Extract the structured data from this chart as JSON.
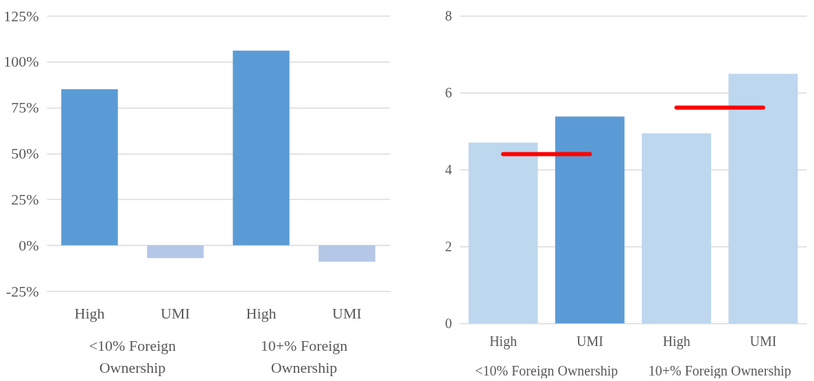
{
  "chart_data": [
    {
      "type": "bar",
      "categories": [
        "High",
        "UMI",
        "High",
        "UMI"
      ],
      "series": [
        {
          "type": "bar",
          "colors": [
            "#5b9bd5",
            "#b4c7e7",
            "#5b9bd5",
            "#b4c7e7"
          ],
          "values": [
            85,
            -7,
            106,
            -9
          ]
        }
      ],
      "ylim": [
        -25,
        125
      ],
      "yticks": [
        {
          "value": -25,
          "label": "-25%"
        },
        {
          "value": 0,
          "label": "0%"
        },
        {
          "value": 25,
          "label": "25%"
        },
        {
          "value": 50,
          "label": "50%"
        },
        {
          "value": 75,
          "label": "75%"
        },
        {
          "value": 100,
          "label": "100%"
        },
        {
          "value": 125,
          "label": "125%"
        }
      ],
      "grid": "y",
      "annotations": [
        "<10% Foreign Ownership",
        "10+% Foreign Ownership"
      ]
    },
    {
      "type": "bar",
      "categories": [
        "High",
        "UMI",
        "High",
        "UMI"
      ],
      "series": [
        {
          "type": "bar",
          "colors": [
            "#bdd7ee",
            "#5b9bd5",
            "#bdd7ee",
            "#bdd7ee"
          ],
          "values": [
            4.7,
            5.38,
            4.94,
            6.49
          ]
        },
        {
          "type": "line",
          "color": "#ff0000",
          "values": [
            4.4,
            4.4,
            null,
            null
          ]
        },
        {
          "type": "line",
          "color": "#ff0000",
          "values": [
            null,
            null,
            5.61,
            5.61
          ]
        }
      ],
      "ylim": [
        0,
        8
      ],
      "yticks": [
        0,
        2,
        4,
        6,
        8
      ],
      "grid": "y",
      "annotations": [
        "<10% Foreign Ownership",
        "10+% Foreign Ownership"
      ]
    }
  ]
}
